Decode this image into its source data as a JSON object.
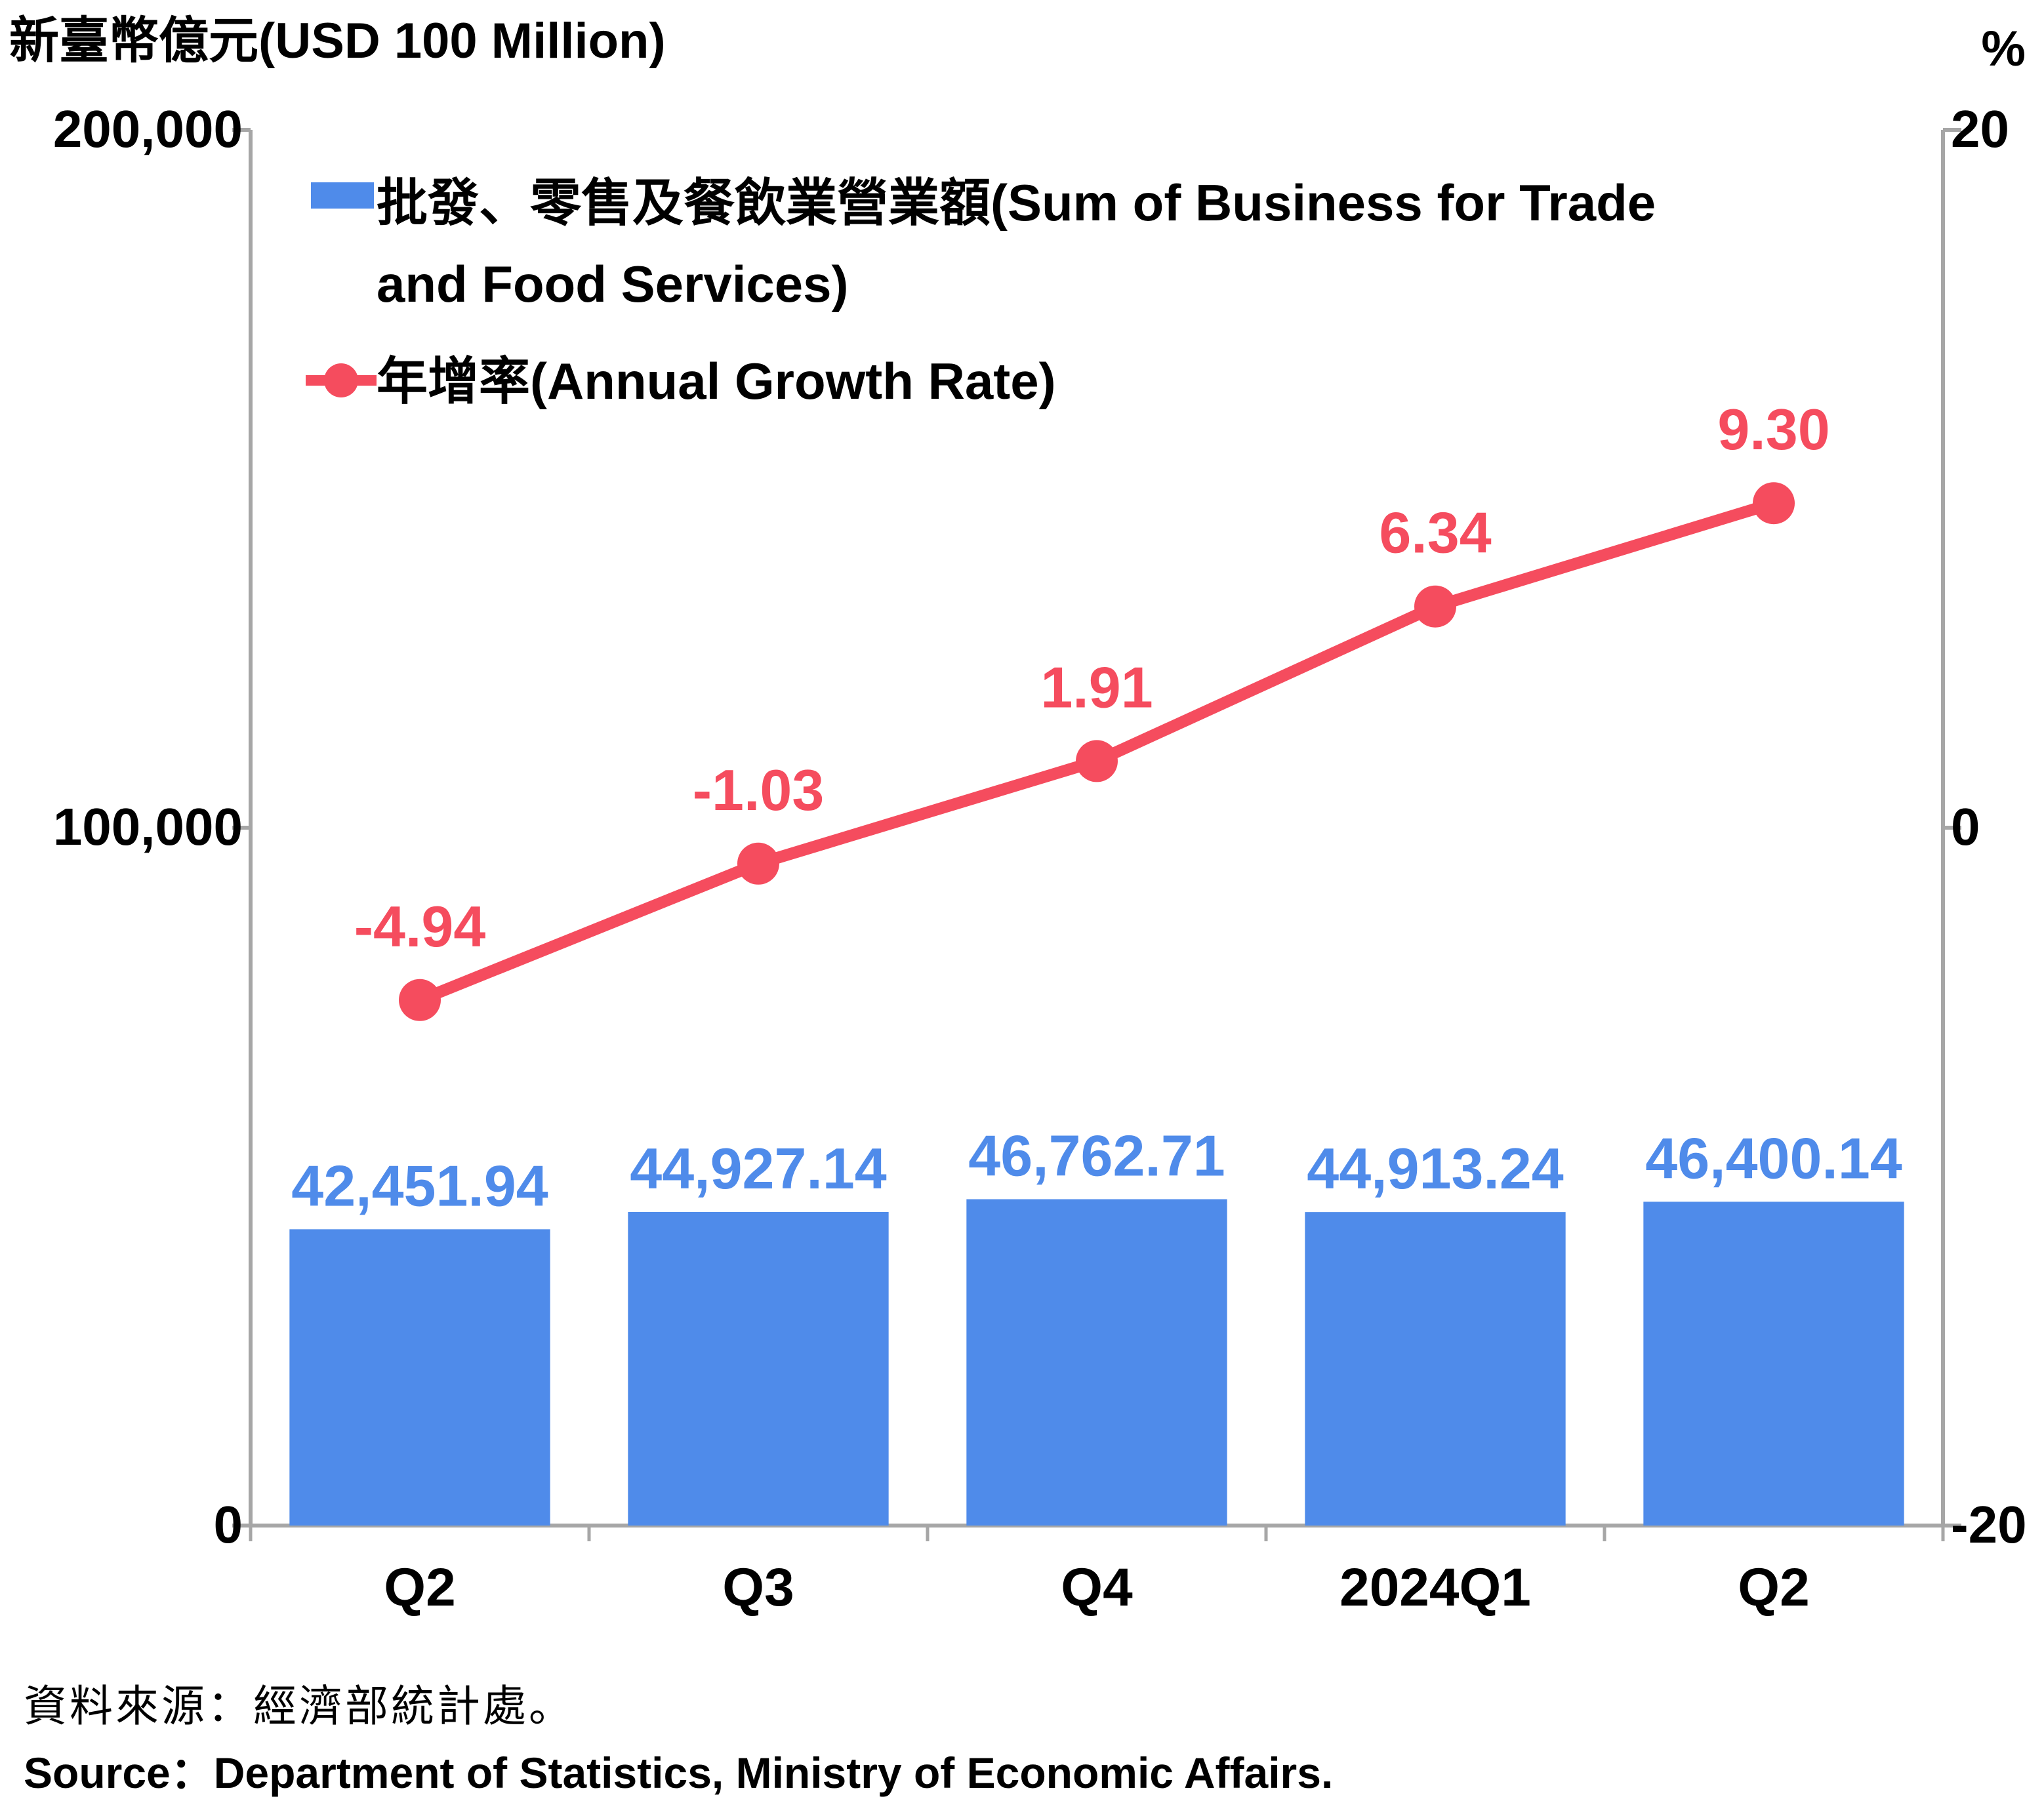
{
  "chart_data": {
    "type": "bar+line",
    "categories": [
      "Q2",
      "Q3",
      "Q4",
      "2024Q1",
      "Q2"
    ],
    "y_left_label": "新臺幣億元(USD 100 Million)",
    "y_right_label": "%",
    "y_left_lim": [
      0,
      200000
    ],
    "y_right_lim": [
      -20,
      20
    ],
    "y_left_ticks": [
      "0",
      "100,000",
      "200,000"
    ],
    "y_right_ticks": [
      "-20",
      "0",
      "20"
    ],
    "y_left_tick_values": [
      0,
      100000,
      200000
    ],
    "y_right_tick_values": [
      -20,
      0,
      20
    ],
    "grid": false,
    "legend_position": "top-left",
    "series": [
      {
        "name": "批發、零售及餐飲業營業額(Sum of Business for Trade and Food Services)",
        "legend_lines": [
          "批發、零售及餐飲業營業額(Sum of Business for Trade",
          "and Food Services)"
        ],
        "type": "bar",
        "axis": "left",
        "color": "#4f8bea",
        "values": [
          42451.94,
          44927.14,
          46762.71,
          44913.24,
          46400.14
        ],
        "labels": [
          "42,451.94",
          "44,927.14",
          "46,762.71",
          "44,913.24",
          "46,400.14"
        ]
      },
      {
        "name": "年增率(Annual Growth Rate)",
        "type": "line",
        "axis": "right",
        "color": "#f54c5e",
        "values": [
          -4.94,
          -1.03,
          1.91,
          6.34,
          9.3
        ],
        "labels": [
          "-4.94",
          "-1.03",
          "1.91",
          "6.34",
          "9.30"
        ]
      }
    ]
  },
  "source": {
    "zh": "資料來源：經濟部統計處。",
    "en": "Source：Department of Statistics, Ministry of Economic Affairs."
  }
}
